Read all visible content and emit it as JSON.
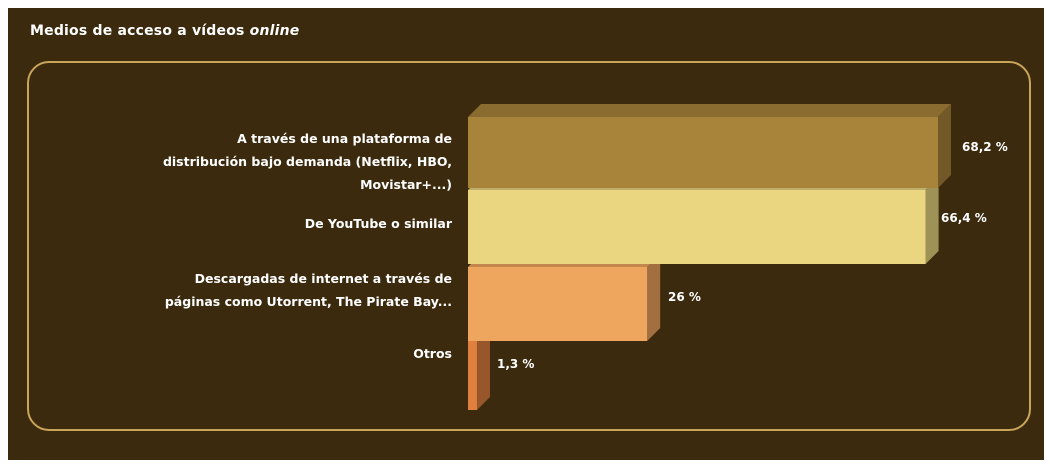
{
  "title": {
    "prefix": "Medios de acceso a vídeos ",
    "emphasis": "online"
  },
  "chart_data": {
    "type": "bar",
    "orientation": "horizontal",
    "categories": [
      "A través de una plataforma de distribución bajo demanda (Netflix, HBO, Movistar+...)",
      "De YouTube o similar",
      "Descargadas de internet a través de páginas como Utorrent, The Pirate Bay...",
      "Otros"
    ],
    "values": [
      68.2,
      66.4,
      26,
      1.3
    ],
    "value_labels": [
      "68,2 %",
      "66,4 %",
      "26 %",
      "1,3 %"
    ],
    "colors": [
      "#a8833a",
      "#ead680",
      "#eea55e",
      "#e0803e"
    ],
    "xlim": [
      0,
      68.2
    ],
    "grid": false,
    "legend": "none"
  }
}
